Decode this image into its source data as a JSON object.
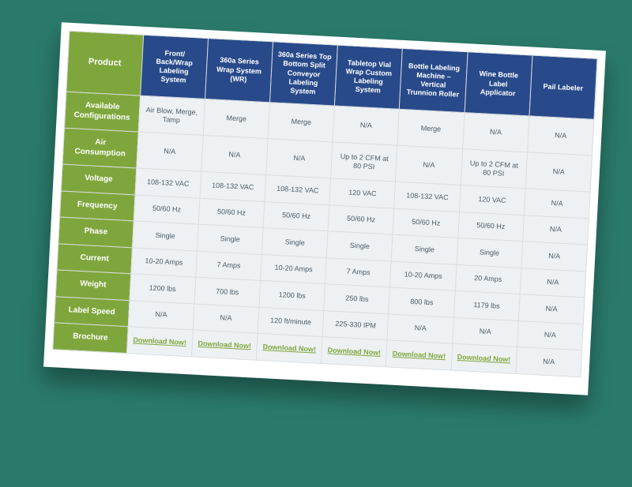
{
  "table": {
    "corner_label": "Product",
    "column_headers": [
      "Front/\nBack/Wrap\nLabeling\nSystem",
      "360a Series\nWrap System\n(WR)",
      "360a\nSeries Top\nBottom Split\nConveyor\nLabeling\nSystem",
      "Tabletop\nVial Wrap\nCustom\nLabeling\nSystem",
      "Bottle\nLabeling\nMachine\n– Vertical\nTrunnion\nRoller",
      "Wine Bottle\nLabel\nApplicator",
      "Pail\nLabeler"
    ],
    "row_labels": [
      "Available\nConfigurations",
      "Air Consumption",
      "Voltage",
      "Frequency",
      "Phase",
      "Current",
      "Weight",
      "Label Speed",
      "Brochure"
    ],
    "rows": [
      [
        "Air Blow, Merge, Tamp",
        "Merge",
        "Merge",
        "N/A",
        "Merge",
        "N/A",
        "N/A"
      ],
      [
        "N/A",
        "N/A",
        "N/A",
        "Up to 2 CFM at 80 PSI",
        "N/A",
        "Up to 2 CFM at 80 PSI",
        "N/A"
      ],
      [
        "108-132 VAC",
        "108-132 VAC",
        "108-132 VAC",
        "120 VAC",
        "108-132 VAC",
        "120 VAC",
        "N/A"
      ],
      [
        "50/60 Hz",
        "50/60 Hz",
        "50/60 Hz",
        "50/60 Hz",
        "50/60 Hz",
        "50/60 Hz",
        "N/A"
      ],
      [
        "Single",
        "Single",
        "Single",
        "Single",
        "Single",
        "Single",
        "N/A"
      ],
      [
        "10-20 Amps",
        "7 Amps",
        "10-20 Amps",
        "7 Amps",
        "10-20 Amps",
        "20 Amps",
        "N/A"
      ],
      [
        "1200 lbs",
        "700 lbs",
        "1200 lbs",
        "250 lbs",
        "800 lbs",
        "1179 lbs",
        "N/A"
      ],
      [
        "N/A",
        "N/A",
        "120 ft/minute",
        "225-330 IPM",
        "N/A",
        "N/A",
        "N/A"
      ],
      [
        "Download Now!",
        "Download Now!",
        "Download Now!",
        "Download Now!",
        "Download Now!",
        "Download Now!",
        "N/A"
      ]
    ],
    "brochure_row_index": 8,
    "colors": {
      "page_bg": "#2a7a6a",
      "card_bg": "#ffffff",
      "header_col_bg": "#284a8a",
      "row_label_bg": "#7fa63c",
      "cell_bg": "#eef1f3",
      "cell_text": "#4a5a66",
      "header_text": "#ffffff",
      "link_color": "#7fa63c",
      "border_color": "#d9dde0"
    },
    "rotation_deg": 3
  }
}
